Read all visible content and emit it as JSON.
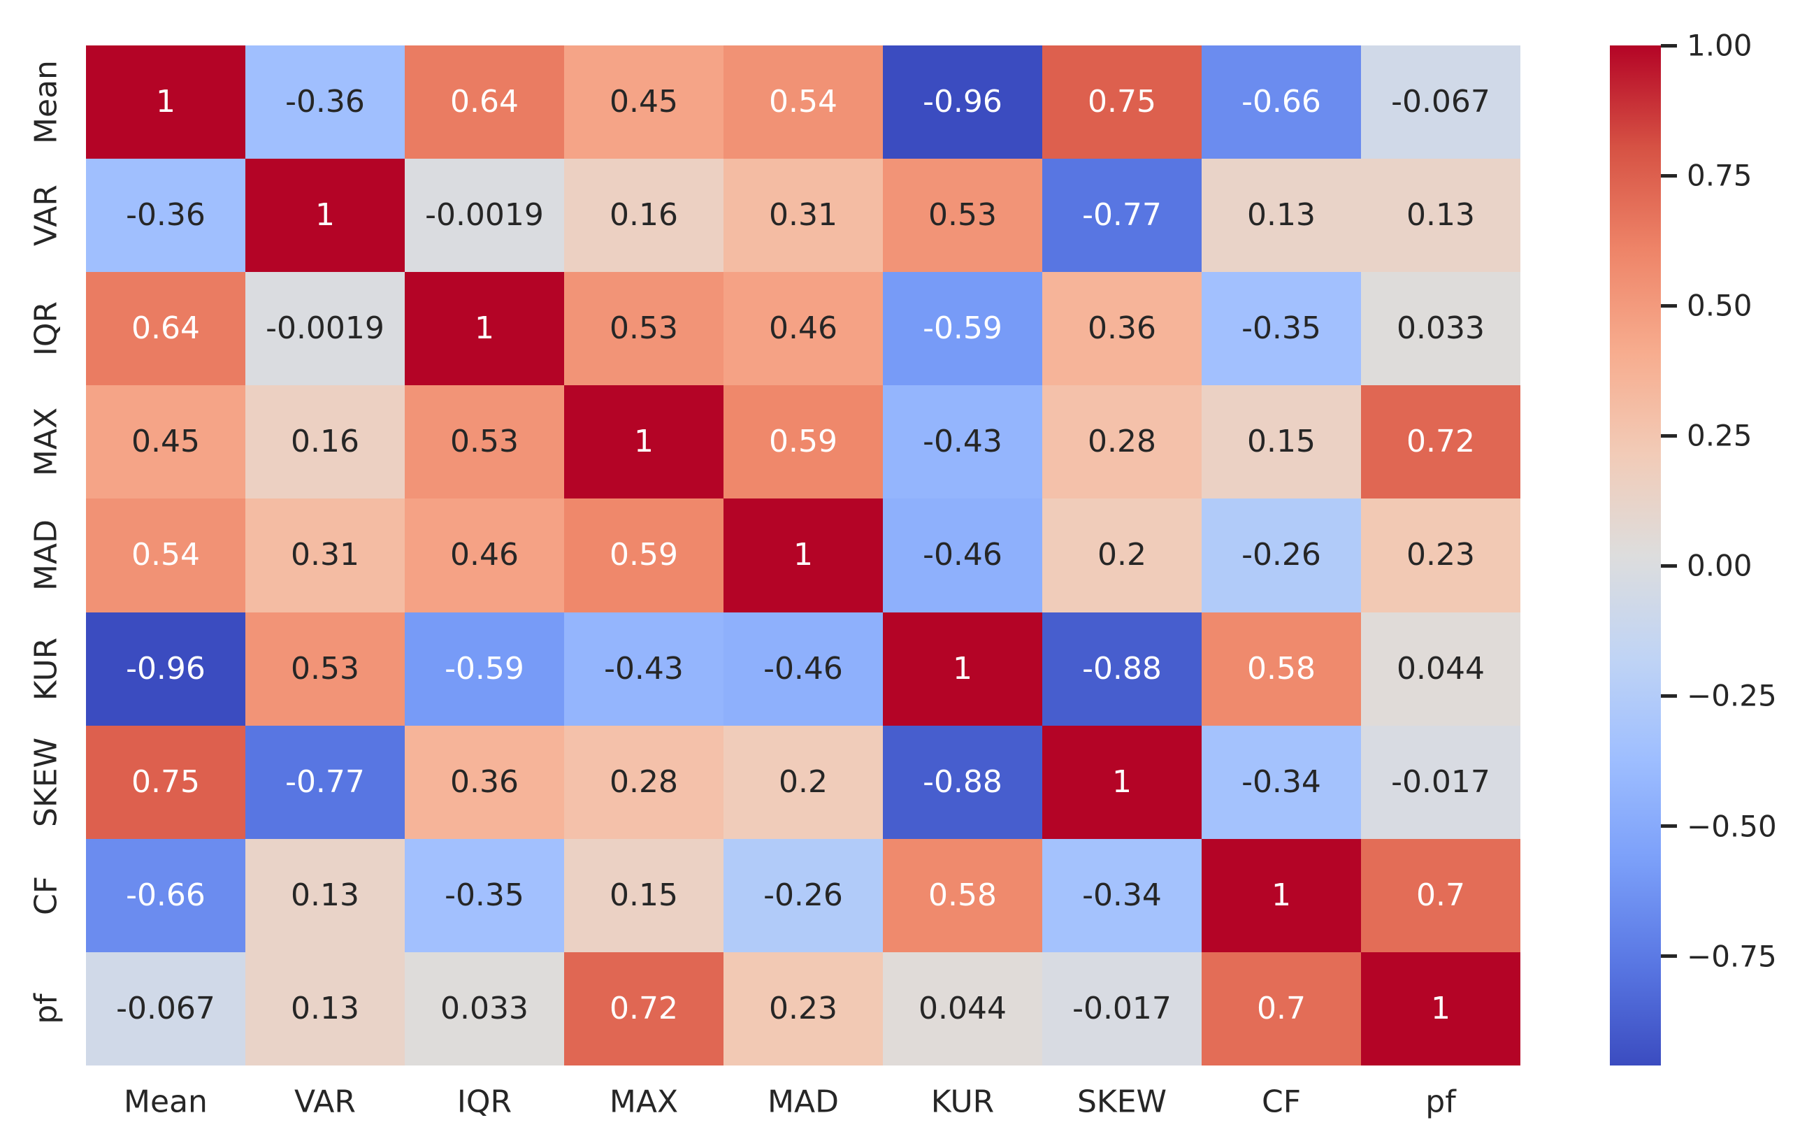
{
  "chart_data": {
    "type": "heatmap",
    "title": "",
    "xlabel": "",
    "ylabel": "",
    "categories": [
      "Mean",
      "VAR",
      "IQR",
      "MAX",
      "MAD",
      "KUR",
      "SKEW",
      "CF",
      "pf"
    ],
    "row_labels": [
      "Mean",
      "VAR",
      "IQR",
      "MAX",
      "MAD",
      "KUR",
      "SKEW",
      "CF",
      "pf"
    ],
    "matrix": [
      [
        1,
        -0.36,
        0.64,
        0.45,
        0.54,
        -0.96,
        0.75,
        -0.66,
        -0.067
      ],
      [
        -0.36,
        1,
        -0.0019,
        0.16,
        0.31,
        0.53,
        -0.77,
        0.13,
        0.13
      ],
      [
        0.64,
        -0.0019,
        1,
        0.53,
        0.46,
        -0.59,
        0.36,
        -0.35,
        0.033
      ],
      [
        0.45,
        0.16,
        0.53,
        1,
        0.59,
        -0.43,
        0.28,
        0.15,
        0.72
      ],
      [
        0.54,
        0.31,
        0.46,
        0.59,
        1,
        -0.46,
        0.2,
        -0.26,
        0.23
      ],
      [
        -0.96,
        0.53,
        -0.59,
        -0.43,
        -0.46,
        1,
        -0.88,
        0.58,
        0.044
      ],
      [
        0.75,
        -0.77,
        0.36,
        0.28,
        0.2,
        -0.88,
        1,
        -0.34,
        -0.017
      ],
      [
        -0.66,
        0.13,
        -0.35,
        0.15,
        -0.26,
        0.58,
        -0.34,
        1,
        0.7
      ],
      [
        -0.067,
        0.13,
        0.033,
        0.72,
        0.23,
        0.044,
        -0.017,
        0.7,
        1
      ]
    ],
    "cell_labels": [
      [
        "1",
        "-0.36",
        "0.64",
        "0.45",
        "0.54",
        "-0.96",
        "0.75",
        "-0.66",
        "-0.067"
      ],
      [
        "-0.36",
        "1",
        "-0.0019",
        "0.16",
        "0.31",
        "0.53",
        "-0.77",
        "0.13",
        "0.13"
      ],
      [
        "0.64",
        "-0.0019",
        "1",
        "0.53",
        "0.46",
        "-0.59",
        "0.36",
        "-0.35",
        "0.033"
      ],
      [
        "0.45",
        "0.16",
        "0.53",
        "1",
        "0.59",
        "-0.43",
        "0.28",
        "0.15",
        "0.72"
      ],
      [
        "0.54",
        "0.31",
        "0.46",
        "0.59",
        "1",
        "-0.46",
        "0.2",
        "-0.26",
        "0.23"
      ],
      [
        "-0.96",
        "0.53",
        "-0.59",
        "-0.43",
        "-0.46",
        "1",
        "-0.88",
        "0.58",
        "0.044"
      ],
      [
        "0.75",
        "-0.77",
        "0.36",
        "0.28",
        "0.2",
        "-0.88",
        "1",
        "-0.34",
        "-0.017"
      ],
      [
        "-0.66",
        "0.13",
        "-0.35",
        "0.15",
        "-0.26",
        "0.58",
        "-0.34",
        "1",
        "0.7"
      ],
      [
        "-0.067",
        "0.13",
        "0.033",
        "0.72",
        "0.23",
        "0.044",
        "-0.017",
        "0.7",
        "1"
      ]
    ],
    "colormap": {
      "name": "coolwarm",
      "vmin": -0.96,
      "vmax": 1.0,
      "anchors": [
        "#3b4cc0",
        "#5977e3",
        "#7b9ff9",
        "#9ebeff",
        "#c0d4f5",
        "#dddddd",
        "#f2cbb7",
        "#f7ac8e",
        "#ee8468",
        "#d65244",
        "#b40426"
      ]
    },
    "colorbar": {
      "position": "right",
      "tick_values": [
        1.0,
        0.75,
        0.5,
        0.25,
        0.0,
        -0.25,
        -0.5,
        -0.75
      ],
      "tick_labels": [
        "1.00",
        "0.75",
        "0.50",
        "0.25",
        "0.00",
        "−0.25",
        "−0.50",
        "−0.75"
      ]
    },
    "text_colors": {
      "dark": "#262626",
      "light": "#ffffff"
    },
    "background": "#ffffff",
    "grid": false
  }
}
